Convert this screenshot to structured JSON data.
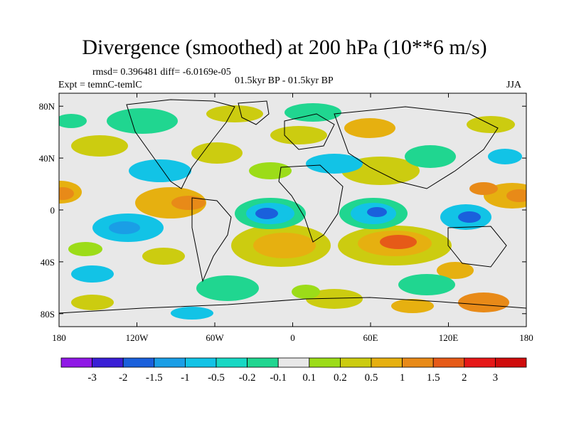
{
  "chart_data": {
    "type": "heatmap",
    "title": "Divergence (smoothed) at 200 hPa (10**6 m/s)",
    "stats_line": "rmsd= 0.396481 diff= -6.0169e-05",
    "experiment": "Expt = temnC-temlC",
    "period": "01.5kyr BP - 01.5kyr BP",
    "season": "JJA",
    "x_ticks": [
      "180",
      "120W",
      "60W",
      "0",
      "60E",
      "120E",
      "180"
    ],
    "y_ticks": [
      "80N",
      "40N",
      "0",
      "40S",
      "80S"
    ],
    "xlim": [
      -180,
      180
    ],
    "ylim": [
      -90,
      90
    ],
    "colorbar": {
      "levels": [
        "-3",
        "-2",
        "-1.5",
        "-1",
        "-0.5",
        "-0.2",
        "-0.1",
        "0.1",
        "0.2",
        "0.5",
        "1",
        "1.5",
        "2",
        "3"
      ],
      "colors": [
        "#8f18e6",
        "#3a1fd6",
        "#1a60dc",
        "#1a9ee6",
        "#12c3e6",
        "#18d8c4",
        "#20d690",
        "#e8e8e8",
        "#9cdc18",
        "#cccc10",
        "#e6b010",
        "#e88a18",
        "#e65a18",
        "#e61818",
        "#d00c0c"
      ]
    }
  }
}
